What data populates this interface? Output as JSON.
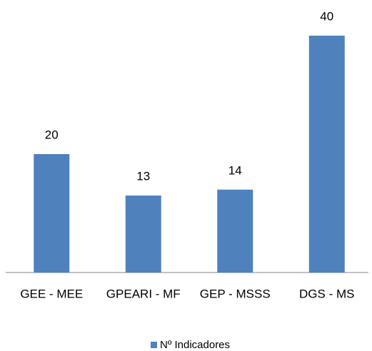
{
  "chart_data": {
    "type": "bar",
    "categories": [
      "GEE - MEE",
      "GPEARI - MF",
      "GEP - MSSS",
      "DGS - MS"
    ],
    "series": [
      {
        "name": "Nº Indicadores",
        "color": "#4f81bd",
        "values": [
          20,
          13,
          14,
          40
        ]
      }
    ],
    "legend": "bottom"
  }
}
